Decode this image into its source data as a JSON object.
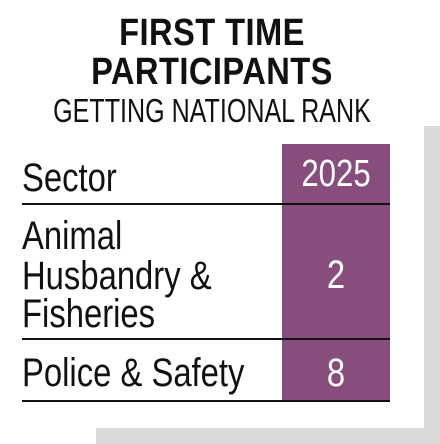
{
  "title_line1": "FIRST TIME",
  "title_line2": "PARTICIPANTS",
  "subtitle": "GETTING NATIONAL RANK",
  "table": {
    "header": {
      "label": "Sector",
      "year": "2025"
    },
    "rows": [
      {
        "label_lines": [
          "Animal",
          "Husbandry &",
          "Fisheries"
        ],
        "value": "2"
      },
      {
        "label_lines": [
          "Police & Safety"
        ],
        "value": "8"
      }
    ]
  },
  "colors": {
    "accent": "#874e7d",
    "shadow": "#d9d9d9",
    "text": "#111111"
  }
}
